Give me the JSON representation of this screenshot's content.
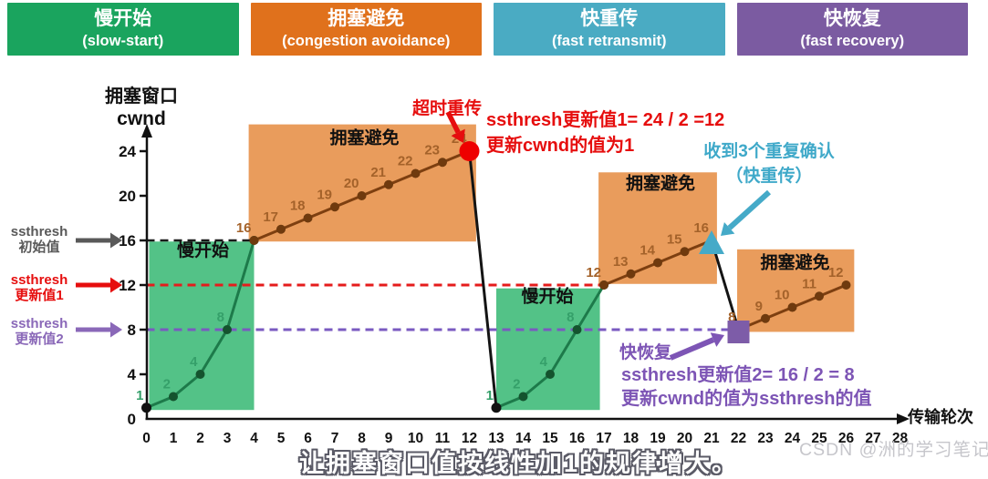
{
  "header": {
    "boxes": [
      {
        "id": "slow-start",
        "title": "慢开始",
        "subtitle": "(slow-start)",
        "color": "#1aa45e"
      },
      {
        "id": "congestion-avoidance",
        "title": "拥塞避免",
        "subtitle": "(congestion avoidance)",
        "color": "#e0711c"
      },
      {
        "id": "fast-retransmit",
        "title": "快重传",
        "subtitle": "(fast retransmit)",
        "color": "#4aabc3"
      },
      {
        "id": "fast-recovery",
        "title": "快恢复",
        "subtitle": "(fast recovery)",
        "color": "#7b5ba1"
      }
    ]
  },
  "axis_labels": {
    "y_line1": "拥塞窗口",
    "y_line2": "cwnd",
    "x": "传输轮次"
  },
  "side_labels": {
    "initial": {
      "line1": "ssthresh",
      "line2": "初始值",
      "color": "#595959",
      "points_to": 16
    },
    "update1": {
      "line1": "ssthresh",
      "line2": "更新值1",
      "color": "#e60e0e",
      "points_to": 12
    },
    "update2": {
      "line1": "ssthresh",
      "line2": "更新值2",
      "color": "#8a68b8",
      "points_to": 8
    }
  },
  "annotations": {
    "timeout": "超时重传",
    "ssthresh1_line1": "ssthresh更新值1= 24 / 2 =12",
    "ssthresh1_line2": "更新cwnd的值为1",
    "dupack_line1": "收到3个重复确认",
    "dupack_line2": "（快重传）",
    "fast_recovery": "快恢复",
    "ssthresh2_line1": "ssthresh更新值2= 16 / 2 = 8",
    "ssthresh2_line2": "更新cwnd的值为ssthresh的值"
  },
  "caption": "让拥塞窗口值按线性加1的规律增大。",
  "watermark": "CSDN @洲的学习笔记",
  "chart_data": {
    "type": "line",
    "xlabel": "传输轮次",
    "ylabel": "拥塞窗口 cwnd",
    "xlim": [
      0,
      28.5
    ],
    "ylim": [
      0,
      26.5
    ],
    "x_ticks": [
      0,
      1,
      2,
      3,
      4,
      5,
      6,
      7,
      8,
      9,
      10,
      11,
      12,
      13,
      14,
      15,
      16,
      17,
      18,
      19,
      20,
      21,
      22,
      23,
      24,
      25,
      26,
      27,
      28
    ],
    "y_ticks": [
      0,
      4,
      8,
      12,
      16,
      20,
      24
    ],
    "segments": [
      {
        "id": "slow-start-1",
        "phase": "slow-start",
        "color": "#1d7a4a",
        "dot_color": "#14532e",
        "label_color": "#35a06a",
        "points": [
          [
            0,
            1
          ],
          [
            1,
            2
          ],
          [
            2,
            4
          ],
          [
            3,
            8
          ],
          [
            4,
            16
          ]
        ],
        "point_labels": [
          "1",
          "2",
          "4",
          "8",
          ""
        ]
      },
      {
        "id": "congestion-avoidance-1",
        "phase": "congestion-avoidance",
        "color": "#7d3f10",
        "dot_color": "#6f3a0e",
        "label_color": "#a4622a",
        "points": [
          [
            4,
            16
          ],
          [
            5,
            17
          ],
          [
            6,
            18
          ],
          [
            7,
            19
          ],
          [
            8,
            20
          ],
          [
            9,
            21
          ],
          [
            10,
            22
          ],
          [
            11,
            23
          ],
          [
            12,
            24
          ]
        ],
        "point_labels": [
          "16",
          "17",
          "18",
          "19",
          "20",
          "21",
          "22",
          "23",
          "24"
        ]
      },
      {
        "id": "timeout-drop",
        "phase": "timeout",
        "color": "#141414",
        "dots": false,
        "points": [
          [
            12,
            24
          ],
          [
            13,
            1
          ]
        ],
        "point_labels": [
          "",
          ""
        ]
      },
      {
        "id": "slow-start-2",
        "phase": "slow-start",
        "color": "#1d7a4a",
        "dot_color": "#14532e",
        "label_color": "#35a06a",
        "points": [
          [
            13,
            1
          ],
          [
            14,
            2
          ],
          [
            15,
            4
          ],
          [
            16,
            8
          ],
          [
            17,
            12
          ]
        ],
        "point_labels": [
          "1",
          "2",
          "4",
          "8",
          ""
        ]
      },
      {
        "id": "congestion-avoidance-2",
        "phase": "congestion-avoidance",
        "color": "#7d3f10",
        "dot_color": "#6f3a0e",
        "label_color": "#a4622a",
        "points": [
          [
            17,
            12
          ],
          [
            18,
            13
          ],
          [
            19,
            14
          ],
          [
            20,
            15
          ],
          [
            21,
            16
          ]
        ],
        "point_labels": [
          "12",
          "13",
          "14",
          "15",
          "16"
        ]
      },
      {
        "id": "fast-recovery-drop",
        "phase": "fast-recovery",
        "color": "#141414",
        "dots": false,
        "points": [
          [
            21,
            16
          ],
          [
            22,
            8
          ]
        ],
        "point_labels": [
          "",
          ""
        ]
      },
      {
        "id": "congestion-avoidance-3",
        "phase": "congestion-avoidance",
        "color": "#7d3f10",
        "dot_color": "#6f3a0e",
        "label_color": "#a4622a",
        "points": [
          [
            22,
            8
          ],
          [
            23,
            9
          ],
          [
            24,
            10
          ],
          [
            25,
            11
          ],
          [
            26,
            12
          ]
        ],
        "point_labels": [
          "8",
          "9",
          "10",
          "11",
          "12"
        ]
      }
    ],
    "regions": [
      {
        "id": "slow-start-1",
        "label": "慢开始",
        "x0": 0.1,
        "x1": 4.0,
        "y0": 0.8,
        "y1": 15.9,
        "color": "#53c287",
        "label_x": 2.1,
        "label_y": 14.6
      },
      {
        "id": "congestion-avoidance-1",
        "label": "拥塞避免",
        "x0": 3.8,
        "x1": 12.25,
        "y0": 15.9,
        "y1": 26.4,
        "color": "#e99c5c",
        "label_x": 8.1,
        "label_y": 24.7
      },
      {
        "id": "slow-start-2",
        "label": "慢开始",
        "x0": 13.0,
        "x1": 16.85,
        "y0": 0.8,
        "y1": 11.7,
        "color": "#53c287",
        "label_x": 14.9,
        "label_y": 10.5
      },
      {
        "id": "congestion-avoidance-2",
        "label": "拥塞避免",
        "x0": 16.8,
        "x1": 21.2,
        "y0": 12.1,
        "y1": 22.1,
        "color": "#e99c5c",
        "label_x": 19.1,
        "label_y": 20.6
      },
      {
        "id": "congestion-avoidance-3",
        "label": "拥塞避免",
        "x0": 21.95,
        "x1": 26.3,
        "y0": 7.8,
        "y1": 15.2,
        "color": "#e99c5c",
        "label_x": 24.1,
        "label_y": 13.5
      }
    ],
    "threshold_lines": [
      {
        "id": "ssthresh-initial",
        "value": 16,
        "x0": 0,
        "x1": 4,
        "color": "#1a1a1a",
        "width": 2.5
      },
      {
        "id": "ssthresh-update-1",
        "value": 12,
        "x0": 0,
        "x1": 17,
        "color": "#e51c1c",
        "width": 3
      },
      {
        "id": "ssthresh-update-2",
        "value": 8,
        "x0": 0,
        "x1": 21.6,
        "color": "#7a5ac0",
        "width": 3
      }
    ],
    "markers": [
      {
        "id": "start-dot-1",
        "type": "dot",
        "x": 0,
        "y": 1,
        "color": "#111111"
      },
      {
        "id": "start-dot-2",
        "type": "dot",
        "x": 13,
        "y": 1,
        "color": "#111111"
      },
      {
        "id": "timeout-point",
        "type": "circle",
        "x": 12,
        "y": 24,
        "color": "#ee0000"
      },
      {
        "id": "dupack-point",
        "type": "triangle",
        "x": 21,
        "y": 16,
        "color": "#45aac8"
      },
      {
        "id": "fast-recovery-point",
        "type": "square",
        "x": 22,
        "y": 8,
        "color": "#7d5ca8"
      }
    ]
  }
}
